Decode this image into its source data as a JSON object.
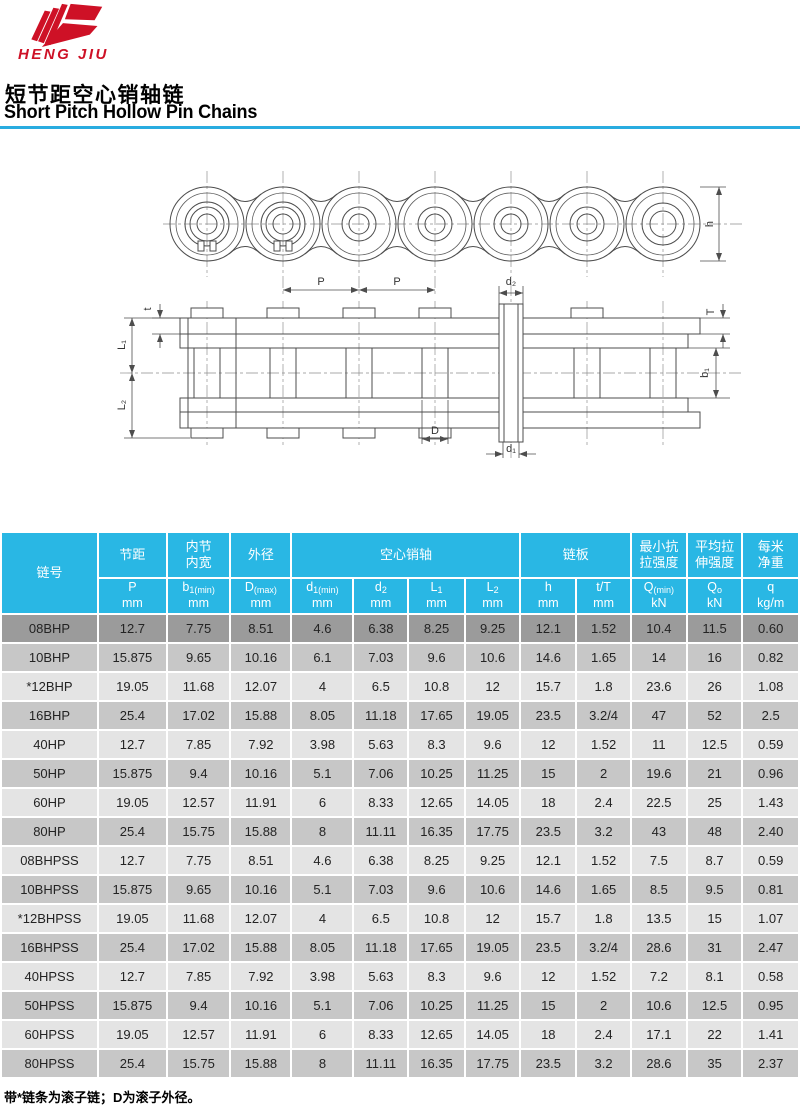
{
  "brand": {
    "name": "HENG JIU",
    "logo_color": "#ce1126"
  },
  "page": {
    "title_zh": "短节距空心销轴链",
    "title_en": "Short Pitch Hollow Pin Chains",
    "footnote": "带*链条为滚子链；D为滚子外径。"
  },
  "colors": {
    "accent_cyan": "#29b7e4",
    "divider_cyan": "#29ace0",
    "brand_red": "#ce1126",
    "row_light": "#e4e4e4",
    "row_medium": "#c7c7c7",
    "row_highlight": "#9b9b9b"
  },
  "diagrams": {
    "side_view": {
      "pitch_label_1": "P",
      "pitch_label_2": "P",
      "height_label": "h"
    },
    "plan_view": {
      "sleeve_dia_label": "d₂",
      "plate_thickness_label_t": "t",
      "length_label_1": "L₁",
      "length_label_2": "L₂",
      "plate_thickness_label_T": "T",
      "inner_width_label": "b₁",
      "roller_dia_label": "D",
      "pin_bore_label": "d₁"
    }
  },
  "table": {
    "group_headers": [
      "链号",
      "节距",
      "内节\n内宽",
      "外径",
      "空心销轴",
      "链板",
      "最小抗\n拉强度",
      "平均拉\n伸强度",
      "每米\n净重"
    ],
    "sub_headers": [
      {
        "base": "P",
        "sub": "",
        "unit": "mm"
      },
      {
        "base": "b",
        "sub": "1(min)",
        "unit": "mm"
      },
      {
        "base": "D",
        "sub": "(max)",
        "unit": "mm"
      },
      {
        "base": "d",
        "sub": "1(min)",
        "unit": "mm"
      },
      {
        "base": "d",
        "sub": "2",
        "unit": "mm"
      },
      {
        "base": "L",
        "sub": "1",
        "unit": "mm"
      },
      {
        "base": "L",
        "sub": "2",
        "unit": "mm"
      },
      {
        "base": "h",
        "sub": "",
        "unit": "mm"
      },
      {
        "base": "t/T",
        "sub": "",
        "unit": "mm"
      },
      {
        "base": "Q",
        "sub": "(min)",
        "unit": "kN"
      },
      {
        "base": "Q",
        "sub": "o",
        "unit": "kN"
      },
      {
        "base": "q",
        "sub": "",
        "unit": "kg/m"
      }
    ],
    "highlighted_row_index": 0,
    "rows": [
      [
        "08BHP",
        "12.7",
        "7.75",
        "8.51",
        "4.6",
        "6.38",
        "8.25",
        "9.25",
        "12.1",
        "1.52",
        "10.4",
        "11.5",
        "0.60"
      ],
      [
        "10BHP",
        "15.875",
        "9.65",
        "10.16",
        "6.1",
        "7.03",
        "9.6",
        "10.6",
        "14.6",
        "1.65",
        "14",
        "16",
        "0.82"
      ],
      [
        "*12BHP",
        "19.05",
        "11.68",
        "12.07",
        "4",
        "6.5",
        "10.8",
        "12",
        "15.7",
        "1.8",
        "23.6",
        "26",
        "1.08"
      ],
      [
        "16BHP",
        "25.4",
        "17.02",
        "15.88",
        "8.05",
        "11.18",
        "17.65",
        "19.05",
        "23.5",
        "3.2/4",
        "47",
        "52",
        "2.5"
      ],
      [
        "40HP",
        "12.7",
        "7.85",
        "7.92",
        "3.98",
        "5.63",
        "8.3",
        "9.6",
        "12",
        "1.52",
        "11",
        "12.5",
        "0.59"
      ],
      [
        "50HP",
        "15.875",
        "9.4",
        "10.16",
        "5.1",
        "7.06",
        "10.25",
        "11.25",
        "15",
        "2",
        "19.6",
        "21",
        "0.96"
      ],
      [
        "60HP",
        "19.05",
        "12.57",
        "11.91",
        "6",
        "8.33",
        "12.65",
        "14.05",
        "18",
        "2.4",
        "22.5",
        "25",
        "1.43"
      ],
      [
        "80HP",
        "25.4",
        "15.75",
        "15.88",
        "8",
        "11.11",
        "16.35",
        "17.75",
        "23.5",
        "3.2",
        "43",
        "48",
        "2.40"
      ],
      [
        "08BHPSS",
        "12.7",
        "7.75",
        "8.51",
        "4.6",
        "6.38",
        "8.25",
        "9.25",
        "12.1",
        "1.52",
        "7.5",
        "8.7",
        "0.59"
      ],
      [
        "10BHPSS",
        "15.875",
        "9.65",
        "10.16",
        "5.1",
        "7.03",
        "9.6",
        "10.6",
        "14.6",
        "1.65",
        "8.5",
        "9.5",
        "0.81"
      ],
      [
        "*12BHPSS",
        "19.05",
        "11.68",
        "12.07",
        "4",
        "6.5",
        "10.8",
        "12",
        "15.7",
        "1.8",
        "13.5",
        "15",
        "1.07"
      ],
      [
        "16BHPSS",
        "25.4",
        "17.02",
        "15.88",
        "8.05",
        "11.18",
        "17.65",
        "19.05",
        "23.5",
        "3.2/4",
        "28.6",
        "31",
        "2.47"
      ],
      [
        "40HPSS",
        "12.7",
        "7.85",
        "7.92",
        "3.98",
        "5.63",
        "8.3",
        "9.6",
        "12",
        "1.52",
        "7.2",
        "8.1",
        "0.58"
      ],
      [
        "50HPSS",
        "15.875",
        "9.4",
        "10.16",
        "5.1",
        "7.06",
        "10.25",
        "11.25",
        "15",
        "2",
        "10.6",
        "12.5",
        "0.95"
      ],
      [
        "60HPSS",
        "19.05",
        "12.57",
        "11.91",
        "6",
        "8.33",
        "12.65",
        "14.05",
        "18",
        "2.4",
        "17.1",
        "22",
        "1.41"
      ],
      [
        "80HPSS",
        "25.4",
        "15.75",
        "15.88",
        "8",
        "11.11",
        "16.35",
        "17.75",
        "23.5",
        "3.2",
        "28.6",
        "35",
        "2.37"
      ]
    ]
  }
}
